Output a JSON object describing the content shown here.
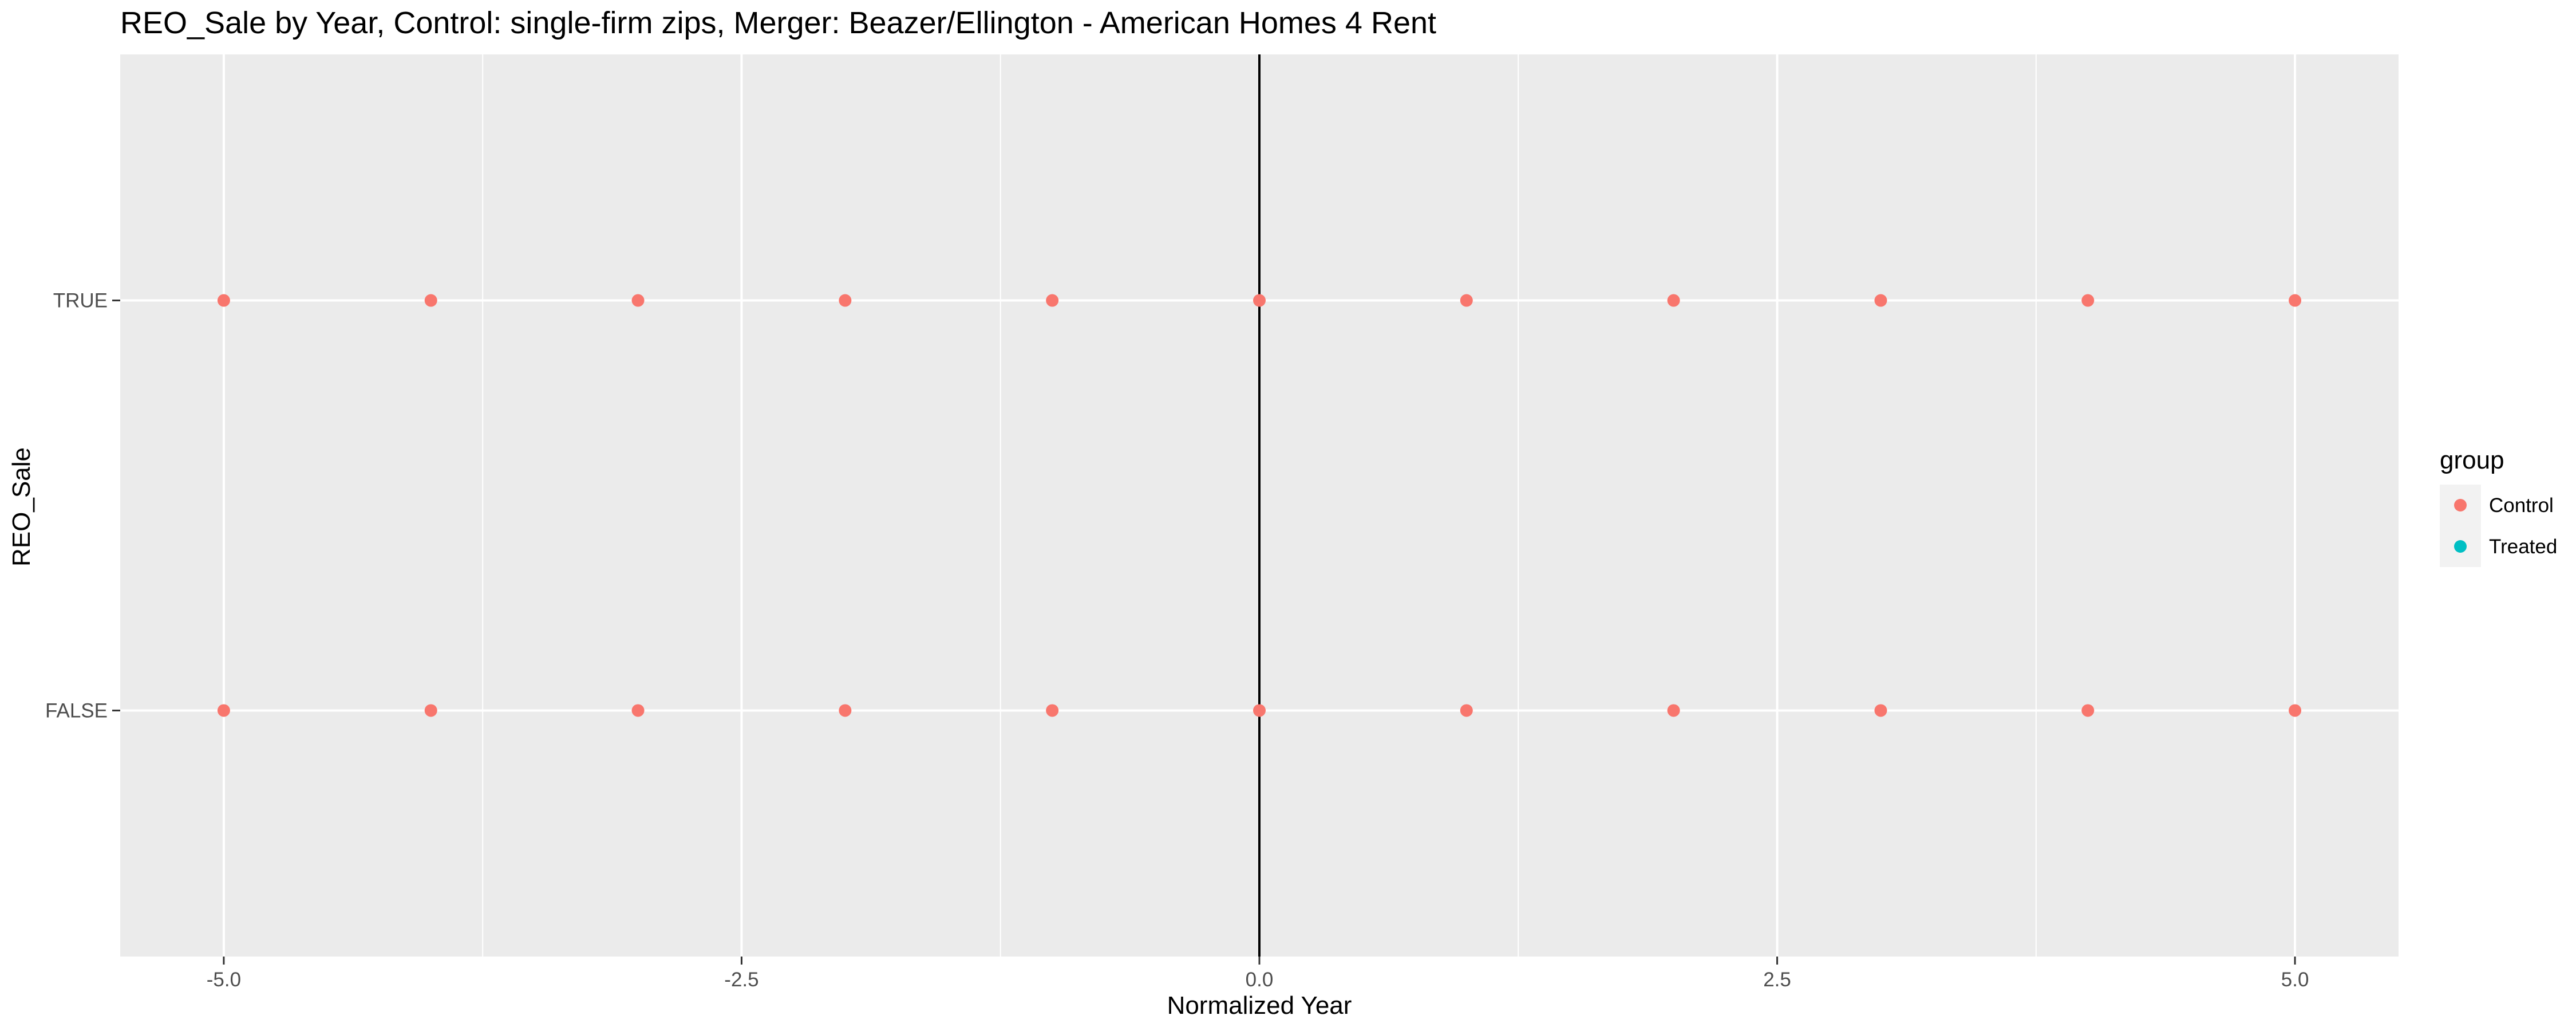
{
  "chart_data": {
    "type": "scatter",
    "title": "REO_Sale by Year, Control: single-firm zips, Merger: Beazer/Ellington - American Homes 4 Rent",
    "xlabel": "Normalized Year",
    "ylabel": "REO_Sale",
    "xlim": [
      -5.5,
      5.5
    ],
    "x_ticks": [
      -5.0,
      -2.5,
      0.0,
      2.5,
      5.0
    ],
    "x_tick_labels": [
      "-5.0",
      "-2.5",
      "0.0",
      "2.5",
      "5.0"
    ],
    "categories": [
      "FALSE",
      "TRUE"
    ],
    "grid": true,
    "vline_x": 0,
    "legend": {
      "title": "group",
      "placement": "right"
    },
    "series": [
      {
        "name": "Control",
        "color": "#F8766D",
        "points": [
          {
            "x": -5,
            "y": "TRUE"
          },
          {
            "x": -4,
            "y": "TRUE"
          },
          {
            "x": -3,
            "y": "TRUE"
          },
          {
            "x": -2,
            "y": "TRUE"
          },
          {
            "x": -1,
            "y": "TRUE"
          },
          {
            "x": 0,
            "y": "TRUE"
          },
          {
            "x": 1,
            "y": "TRUE"
          },
          {
            "x": 2,
            "y": "TRUE"
          },
          {
            "x": 3,
            "y": "TRUE"
          },
          {
            "x": 4,
            "y": "TRUE"
          },
          {
            "x": 5,
            "y": "TRUE"
          },
          {
            "x": -5,
            "y": "FALSE"
          },
          {
            "x": -4,
            "y": "FALSE"
          },
          {
            "x": -3,
            "y": "FALSE"
          },
          {
            "x": -2,
            "y": "FALSE"
          },
          {
            "x": -1,
            "y": "FALSE"
          },
          {
            "x": 0,
            "y": "FALSE"
          },
          {
            "x": 1,
            "y": "FALSE"
          },
          {
            "x": 2,
            "y": "FALSE"
          },
          {
            "x": 3,
            "y": "FALSE"
          },
          {
            "x": 4,
            "y": "FALSE"
          },
          {
            "x": 5,
            "y": "FALSE"
          }
        ]
      },
      {
        "name": "Treated",
        "color": "#00BFC4",
        "points": []
      }
    ],
    "colors": {
      "panel_background": "#EBEBEB",
      "grid_major": "#FFFFFF",
      "vline": "#000000",
      "legend_key_background": "#F2F2F2"
    }
  }
}
